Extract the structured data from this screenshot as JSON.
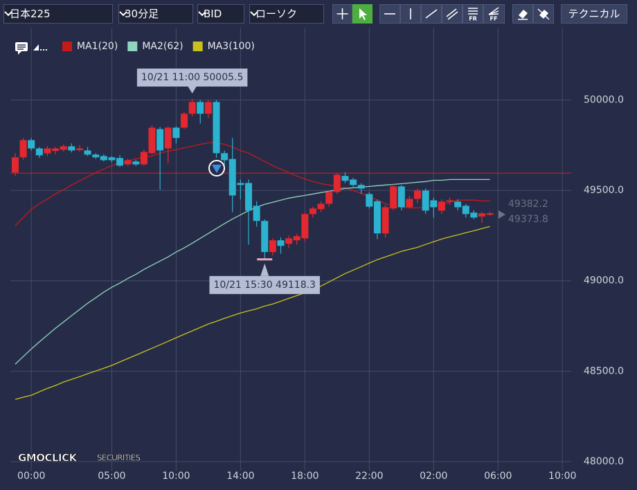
{
  "toolbar": {
    "dropdowns": [
      "日本225",
      "30分足",
      "BID",
      "ローソク"
    ],
    "icon_labels": [
      "FR",
      "FF"
    ],
    "button": "テクニカル"
  },
  "logo": {
    "brand": "GMOCLICK",
    "sub": "SECURITIES"
  },
  "chart_data": {
    "type": "candlestick",
    "up_color": "#e3282f",
    "down_color": "#2bb3d0",
    "x": [
      -2,
      -1,
      0,
      1,
      2,
      3,
      4,
      5,
      6,
      7,
      8,
      9,
      10,
      11,
      12,
      13,
      14,
      15,
      16,
      17,
      18,
      19,
      20,
      21,
      22,
      23,
      24,
      25,
      26,
      27,
      28,
      29,
      30,
      31,
      32,
      33,
      34,
      35,
      36,
      37,
      38,
      39,
      40,
      41,
      42,
      43,
      44,
      45,
      46,
      47,
      48,
      49,
      50,
      51,
      52,
      53,
      54,
      55,
      56,
      57
    ],
    "open": [
      49599,
      49683,
      49778,
      49732,
      49705,
      49718,
      49725,
      49744,
      49723,
      49721,
      49698,
      49690,
      49683,
      49679,
      49644,
      49660,
      49644,
      49706,
      49839,
      49732,
      49847,
      49847,
      49924,
      49989,
      49924,
      49989,
      49706,
      49674,
      49541,
      49541,
      49415,
      49331,
      49159,
      49224,
      49205,
      49224,
      49235,
      49369,
      49396,
      49426,
      49491,
      49580,
      49560,
      49530,
      49480,
      49440,
      49262,
      49400,
      49522,
      49407,
      49453,
      49499,
      49445,
      49388,
      49438,
      49438,
      49415,
      49377,
      49356,
      49365
    ],
    "high": [
      49706,
      49790,
      49790,
      49740,
      49745,
      49740,
      49755,
      49760,
      49750,
      49740,
      49705,
      49700,
      49690,
      49695,
      49675,
      49670,
      49725,
      49860,
      49850,
      49855,
      49855,
      49935,
      50005.5,
      50000,
      50000,
      50000,
      49720,
      49790,
      49560,
      49560,
      49440,
      49340,
      49235,
      49240,
      49250,
      49260,
      49380,
      49410,
      49440,
      49500,
      49595,
      49600,
      49570,
      49540,
      49490,
      49450,
      49420,
      49540,
      49530,
      49470,
      49510,
      49510,
      49460,
      49450,
      49460,
      49450,
      49425,
      49390,
      49380,
      49382.2
    ],
    "low": [
      49579,
      49670,
      49720,
      49680,
      49690,
      49700,
      49715,
      49710,
      49715,
      49690,
      49675,
      49660,
      49655,
      49630,
      49635,
      49635,
      49635,
      49700,
      49503,
      49650,
      49760,
      49840,
      49910,
      49870,
      49900,
      49680,
      49640,
      49380,
      49450,
      49200,
      49300,
      49118.3,
      49140,
      49150,
      49180,
      49200,
      49220,
      49350,
      49380,
      49410,
      49480,
      49540,
      49520,
      49480,
      49400,
      49230,
      49240,
      49390,
      49390,
      49400,
      49430,
      49370,
      49350,
      49370,
      49420,
      49390,
      49350,
      49340,
      49320,
      49360
    ],
    "close": [
      49683,
      49778,
      49732,
      49694,
      49732,
      49732,
      49744,
      49721,
      49732,
      49698,
      49683,
      49667,
      49667,
      49637,
      49667,
      49644,
      49713,
      49847,
      49721,
      49847,
      49790,
      49924,
      49989,
      49924,
      49989,
      49706,
      49667,
      49472,
      49530,
      49388,
      49331,
      49159,
      49224,
      49193,
      49235,
      49247,
      49369,
      49400,
      49426,
      49491,
      49587,
      49553,
      49530,
      49510,
      49410,
      49262,
      49407,
      49522,
      49407,
      49453,
      49499,
      49388,
      49407,
      49438,
      49445,
      49407,
      49369,
      49350,
      49373,
      49373.8
    ],
    "series": [
      {
        "name": "MA1(20)",
        "color": "#c41a1a",
        "values": [
          49304,
          49350,
          49396,
          49426,
          49453,
          49480,
          49503,
          49530,
          49553,
          49576,
          49598,
          49618,
          49637,
          49652,
          49663,
          49675,
          49683,
          49690,
          49706,
          49717,
          49725,
          49736,
          49744,
          49755,
          49763,
          49763,
          49755,
          49740,
          49721,
          49706,
          49683,
          49660,
          49637,
          49618,
          49598,
          49579,
          49564,
          49549,
          49537,
          49530,
          49522,
          49514,
          49499,
          49484,
          49465,
          49446,
          49426,
          49415,
          49407,
          49403,
          49403,
          49407,
          49419,
          49423,
          49434,
          49446,
          49446,
          49446,
          49442,
          49442
        ]
      },
      {
        "name": "MA2(62)",
        "color": "#8fd5bf",
        "values": [
          48539,
          48581,
          48623,
          48662,
          48700,
          48738,
          48772,
          48807,
          48841,
          48876,
          48906,
          48937,
          48964,
          48987,
          49013,
          49036,
          49063,
          49086,
          49109,
          49132,
          49159,
          49182,
          49208,
          49235,
          49262,
          49289,
          49316,
          49342,
          49365,
          49388,
          49407,
          49423,
          49434,
          49446,
          49457,
          49465,
          49472,
          49480,
          49488,
          49495,
          49503,
          49511,
          49514,
          49518,
          49522,
          49526,
          49530,
          49533,
          49537,
          49541,
          49545,
          49549,
          49556,
          49556,
          49560,
          49560,
          49560,
          49560,
          49560,
          49560
        ]
      },
      {
        "name": "MA3(100)",
        "color": "#c9c21e",
        "values": [
          48344,
          48356,
          48367,
          48386,
          48405,
          48421,
          48440,
          48455,
          48470,
          48486,
          48501,
          48516,
          48532,
          48551,
          48570,
          48589,
          48608,
          48627,
          48646,
          48665,
          48685,
          48704,
          48723,
          48742,
          48761,
          48776,
          48792,
          48807,
          48822,
          48834,
          48845,
          48860,
          48872,
          48887,
          48903,
          48918,
          48933,
          48952,
          48971,
          48994,
          49017,
          49040,
          49059,
          49078,
          49098,
          49117,
          49132,
          49147,
          49163,
          49174,
          49185,
          49201,
          49216,
          49231,
          49243,
          49254,
          49266,
          49277,
          49289,
          49300
        ]
      }
    ],
    "hline": 49595,
    "hline_color": "#c41a1a",
    "annotations": [
      {
        "text": "10/21 11:00 50005.5",
        "x": 20,
        "y": 50005.5
      },
      {
        "text": "10/21 15:30 49118.3",
        "x": 29,
        "y": 49118.3
      }
    ],
    "price_labels": [
      49382.2,
      49373.8
    ],
    "xlim": [
      -2.6,
      67.1
    ],
    "xticks": [
      {
        "value": 0,
        "label": "00:00"
      },
      {
        "value": 10,
        "label": "05:00"
      },
      {
        "value": 18,
        "label": "10:00"
      },
      {
        "value": 26,
        "label": "14:00"
      },
      {
        "value": 34,
        "label": "18:00"
      },
      {
        "value": 42,
        "label": "22:00"
      },
      {
        "value": 50,
        "label": "02:00"
      },
      {
        "value": 58,
        "label": "06:00"
      },
      {
        "value": 66,
        "label": "10:00"
      }
    ],
    "ylim": [
      47950,
      50400
    ],
    "yticks": [
      {
        "value": 48000,
        "label": "48000.0"
      },
      {
        "value": 48500,
        "label": "48500.0"
      },
      {
        "value": 49000,
        "label": "49000.0"
      },
      {
        "value": 49500,
        "label": "49500.0"
      },
      {
        "value": 50000,
        "label": "50000.0"
      }
    ],
    "grid": true
  }
}
